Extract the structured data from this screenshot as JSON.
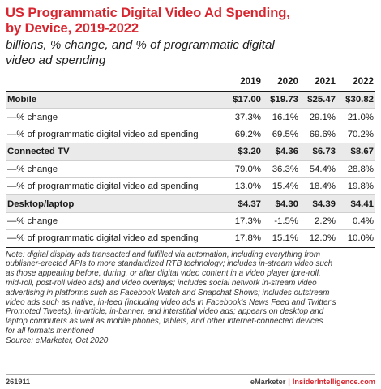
{
  "title_line1": "US Programmatic Digital Video Ad Spending,",
  "title_line2": "by Device, 2019-2022",
  "subtitle_line1": "billions, % change, and % of programmatic digital",
  "subtitle_line2": "video ad spending",
  "chart_data": {
    "type": "table",
    "columns": [
      "2019",
      "2020",
      "2021",
      "2022"
    ],
    "rows": [
      {
        "label": "Mobile",
        "values": [
          "$17.00",
          "$19.73",
          "$25.47",
          "$30.82"
        ],
        "kind": "header"
      },
      {
        "label": "—% change",
        "values": [
          "37.3%",
          "16.1%",
          "29.1%",
          "21.0%"
        ],
        "kind": "sub"
      },
      {
        "label": "—% of programmatic digital video ad spending",
        "values": [
          "69.2%",
          "69.5%",
          "69.6%",
          "70.2%"
        ],
        "kind": "sub"
      },
      {
        "label": "Connected TV",
        "values": [
          "$3.20",
          "$4.36",
          "$6.73",
          "$8.67"
        ],
        "kind": "header"
      },
      {
        "label": "—% change",
        "values": [
          "79.0%",
          "36.3%",
          "54.4%",
          "28.8%"
        ],
        "kind": "sub"
      },
      {
        "label": "—% of programmatic digital video ad spending",
        "values": [
          "13.0%",
          "15.4%",
          "18.4%",
          "19.8%"
        ],
        "kind": "sub"
      },
      {
        "label": "Desktop/laptop",
        "values": [
          "$4.37",
          "$4.30",
          "$4.39",
          "$4.41"
        ],
        "kind": "header"
      },
      {
        "label": "—% change",
        "values": [
          "17.3%",
          "-1.5%",
          "2.2%",
          "0.4%"
        ],
        "kind": "sub"
      },
      {
        "label": "—% of programmatic digital video ad spending",
        "values": [
          "17.8%",
          "15.1%",
          "12.0%",
          "10.0%"
        ],
        "kind": "sub"
      }
    ]
  },
  "note_lines": [
    "Note: digital display ads transacted and fulfilled via automation, including everything from",
    "publisher-erected APIs to more standardized RTB technology; includes in-stream video such",
    "as those appearing before, during, or after digital video content in a video player (pre-roll,",
    "mid-roll, post-roll video ads) and video overlays; includes social network in-stream video",
    "advertising in platforms such as Facebook Watch and Snapchat Shows; includes outstream",
    "video ads such as native, in-feed (including video ads in Facebook's News Feed and Twitter's",
    "Promoted Tweets), in-article, in-banner, and interstitial video ads; appears on desktop and",
    "laptop computers as well as mobile phones, tablets, and other internet-connected devices",
    "for all formats mentioned"
  ],
  "source": "Source: eMarketer, Oct 2020",
  "footer": {
    "id": "261911",
    "brand1": "eMarketer",
    "separator": "|",
    "brand2": "InsiderIntelligence.com"
  },
  "colors": {
    "title": "#d7262f",
    "header_row_bg": "#eaeaea"
  }
}
